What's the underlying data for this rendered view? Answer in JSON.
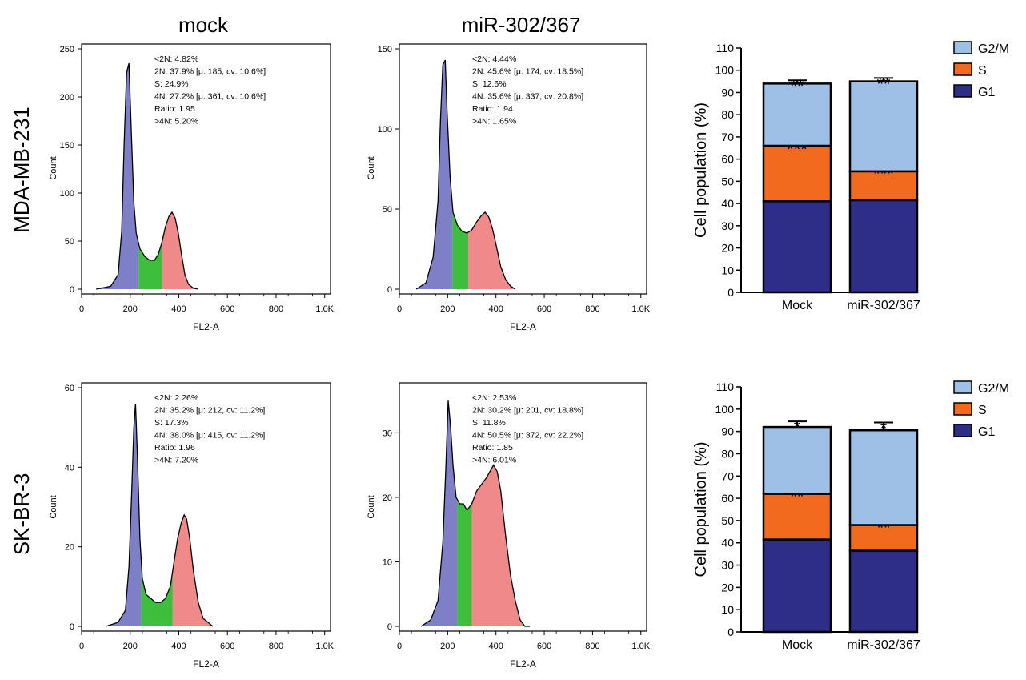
{
  "column_titles": [
    "mock",
    "miR-302/367"
  ],
  "row_labels": [
    "MDA-MB-231",
    "SK-BR-3"
  ],
  "colors": {
    "g1_fill": "#7f7fc8",
    "s_fill": "#3dbf3d",
    "g2m_fill": "#f08a8a",
    "bar_g1": "#2e2d88",
    "bar_s": "#f26a1e",
    "bar_g2m": "#9ec0e6"
  },
  "chart_data": [
    {
      "type": "area",
      "title": "mock",
      "row": "MDA-MB-231",
      "xlabel": "FL2-A",
      "ylabel": "Count",
      "xlim": [
        0,
        1024
      ],
      "ylim": [
        0,
        250
      ],
      "xticks": [
        0,
        200,
        400,
        600,
        800,
        1000
      ],
      "xtick_labels": [
        "0",
        "200",
        "400",
        "600",
        "800",
        "1.0K"
      ],
      "yticks": [
        0,
        50,
        100,
        150,
        200,
        250
      ],
      "stats": [
        "<2N: 4.82%",
        "2N: 37.9%  [μ: 185, cv: 10.6%]",
        "S: 24.9%",
        "4N: 27.2%  [μ: 361, cv: 10.6%]",
        "Ratio: 1.95",
        ">4N: 5.20%"
      ],
      "g1_end": 235,
      "s_end": 330,
      "x": [
        60,
        120,
        150,
        165,
        175,
        185,
        195,
        205,
        215,
        225,
        240,
        260,
        280,
        300,
        315,
        330,
        345,
        360,
        372,
        385,
        398,
        410,
        425,
        440,
        460,
        480
      ],
      "y": [
        0,
        3,
        15,
        60,
        150,
        225,
        235,
        160,
        90,
        58,
        42,
        34,
        30,
        30,
        36,
        48,
        65,
        76,
        80,
        74,
        58,
        38,
        15,
        5,
        1,
        0
      ]
    },
    {
      "type": "area",
      "title": "miR-302/367",
      "row": "MDA-MB-231",
      "xlabel": "FL2-A",
      "ylabel": "Count",
      "xlim": [
        0,
        1024
      ],
      "ylim": [
        0,
        150
      ],
      "xticks": [
        0,
        200,
        400,
        600,
        800,
        1000
      ],
      "xtick_labels": [
        "0",
        "200",
        "400",
        "600",
        "800",
        "1.0K"
      ],
      "yticks": [
        0,
        50,
        100,
        150
      ],
      "stats": [
        "<2N: 4.44%",
        "2N: 45.6%  [μ: 174, cv: 18.5%]",
        "S: 12.6%",
        "4N: 35.6%  [μ: 337, cv: 20.8%]",
        "Ratio: 1.94",
        ">4N: 1.65%"
      ],
      "g1_end": 220,
      "s_end": 285,
      "x": [
        70,
        110,
        140,
        160,
        170,
        180,
        190,
        198,
        210,
        222,
        240,
        260,
        280,
        300,
        320,
        340,
        355,
        370,
        385,
        400,
        420,
        440,
        460,
        480
      ],
      "y": [
        0,
        4,
        20,
        55,
        105,
        140,
        143,
        110,
        70,
        48,
        40,
        36,
        35,
        37,
        42,
        46,
        48,
        45,
        38,
        28,
        14,
        6,
        2,
        0
      ]
    },
    {
      "type": "area",
      "title": "",
      "row": "SK-BR-3",
      "xlabel": "FL2-A",
      "ylabel": "Count",
      "xlim": [
        0,
        1024
      ],
      "ylim": [
        0,
        60
      ],
      "xticks": [
        0,
        200,
        400,
        600,
        800,
        1000
      ],
      "xtick_labels": [
        "0",
        "200",
        "400",
        "600",
        "800",
        "1.0K"
      ],
      "yticks": [
        0,
        20,
        40,
        60
      ],
      "stats": [
        "<2N: 2.26%",
        "2N: 35.2%  [μ: 212, cv: 11.2%]",
        "S: 17.3%",
        "4N: 38.0%  [μ: 415, cv: 11.2%]",
        "Ratio: 1.96",
        ">4N: 7.20%"
      ],
      "g1_end": 245,
      "s_end": 375,
      "x": [
        100,
        150,
        180,
        195,
        205,
        215,
        222,
        230,
        240,
        250,
        265,
        285,
        305,
        325,
        345,
        365,
        380,
        395,
        410,
        422,
        432,
        445,
        460,
        480,
        500,
        520,
        540
      ],
      "y": [
        0,
        1,
        4,
        15,
        32,
        50,
        56,
        42,
        22,
        12,
        8,
        7,
        6,
        6,
        7,
        10,
        16,
        22,
        26,
        28,
        27,
        22,
        14,
        6,
        2,
        1,
        0
      ]
    },
    {
      "type": "area",
      "title": "",
      "row": "SK-BR-3",
      "xlabel": "FL2-A",
      "ylabel": "Count",
      "xlim": [
        0,
        1024
      ],
      "ylim": [
        0,
        37
      ],
      "xticks": [
        0,
        200,
        400,
        600,
        800,
        1000
      ],
      "xtick_labels": [
        "0",
        "200",
        "400",
        "600",
        "800",
        "1.0K"
      ],
      "yticks": [
        0,
        10,
        20,
        30
      ],
      "stats": [
        "<2N: 2.53%",
        "2N: 30.2%  [μ: 201, cv: 18.8%]",
        "S: 11.8%",
        "4N: 50.5%  [μ: 372, cv: 22.2%]",
        "Ratio: 1.85",
        ">4N: 6.01%"
      ],
      "g1_end": 240,
      "s_end": 300,
      "x": [
        90,
        130,
        160,
        180,
        192,
        202,
        212,
        222,
        235,
        250,
        265,
        280,
        300,
        320,
        340,
        360,
        375,
        390,
        405,
        420,
        440,
        460,
        480,
        500,
        520,
        540
      ],
      "y": [
        0,
        1,
        4,
        13,
        24,
        35,
        31,
        25,
        20,
        19,
        19,
        18,
        19,
        21,
        22,
        23,
        24,
        25,
        24,
        21,
        14,
        8,
        4,
        1,
        0,
        0
      ]
    },
    {
      "type": "bar",
      "stacked": true,
      "row": "MDA-MB-231",
      "ylabel": "Cell population (%)",
      "ylim": [
        0,
        110
      ],
      "yticks": [
        0,
        10,
        20,
        30,
        40,
        50,
        60,
        70,
        80,
        90,
        100,
        110
      ],
      "categories": [
        "Mock",
        "miR-302/367"
      ],
      "series": [
        {
          "name": "G1",
          "values": [
            41,
            41.5
          ],
          "errors": [
            1,
            1.5
          ],
          "sig": [
            "",
            ""
          ]
        },
        {
          "name": "S",
          "values": [
            25,
            13
          ],
          "errors": [
            1,
            1.5
          ],
          "sig": [
            "***",
            "***"
          ]
        },
        {
          "name": "G2/M",
          "values": [
            28,
            40.5
          ],
          "errors": [
            1.5,
            1.5
          ],
          "sig": [
            "**",
            "**"
          ]
        }
      ],
      "legend": {
        "entries": [
          "G2/M",
          "S",
          "G1"
        ],
        "placement": "right"
      }
    },
    {
      "type": "bar",
      "stacked": true,
      "row": "SK-BR-3",
      "ylabel": "Cell population (%)",
      "ylim": [
        0,
        110
      ],
      "yticks": [
        0,
        10,
        20,
        30,
        40,
        50,
        60,
        70,
        80,
        90,
        100,
        110
      ],
      "categories": [
        "Mock",
        "miR-302/367"
      ],
      "series": [
        {
          "name": "G1",
          "values": [
            41.5,
            36.5
          ],
          "errors": [
            3,
            2
          ],
          "sig": [
            "",
            ""
          ]
        },
        {
          "name": "S",
          "values": [
            20.5,
            11.5
          ],
          "errors": [
            1.5,
            1.5
          ],
          "sig": [
            "**",
            "**"
          ]
        },
        {
          "name": "G2/M",
          "values": [
            30,
            42.5
          ],
          "errors": [
            2.5,
            3.5
          ],
          "sig": [
            "*",
            "*"
          ]
        }
      ],
      "legend": {
        "entries": [
          "G2/M",
          "S",
          "G1"
        ],
        "placement": "right"
      }
    }
  ]
}
